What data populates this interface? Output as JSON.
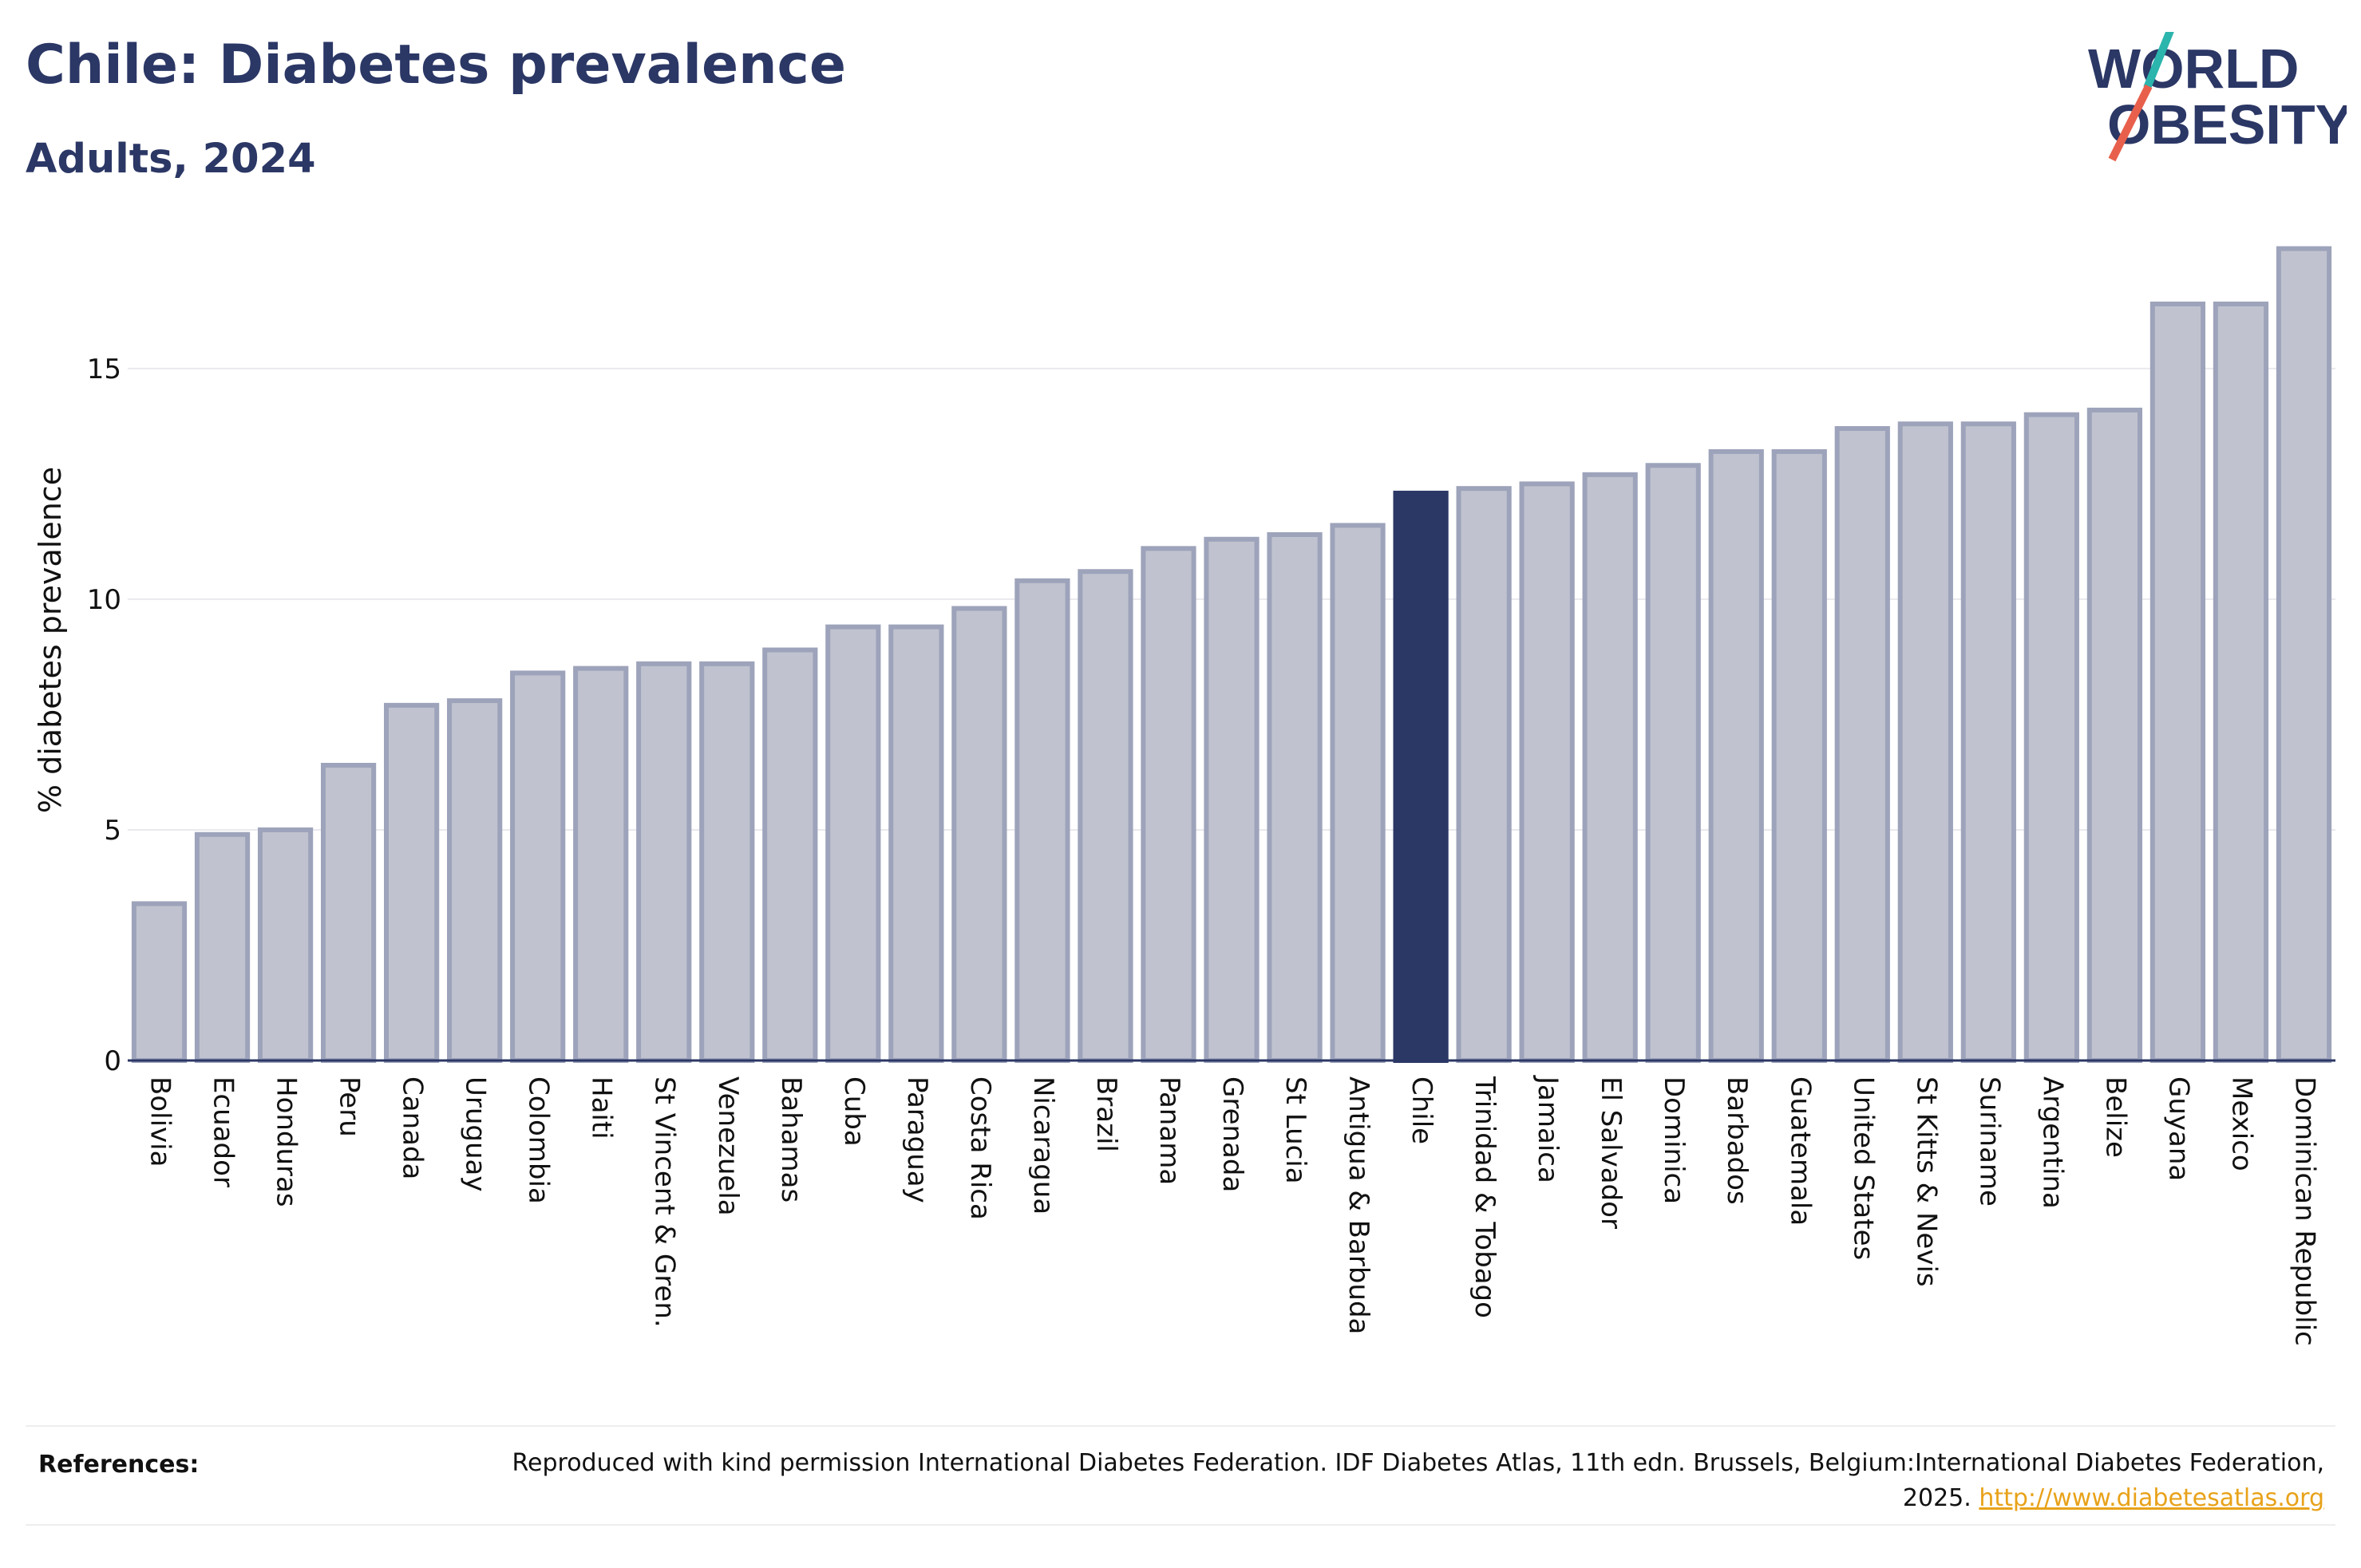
{
  "title": "Chile: Diabetes prevalence",
  "subtitle": "Adults, 2024",
  "logo": {
    "line1": "WORLD",
    "line2": "OBESITY",
    "accent_teal": "#2bb5ad",
    "accent_red": "#e8604c",
    "text_color": "#2b3765"
  },
  "colors": {
    "bar": "#c0c3cf",
    "bar_border": "#9da3ba",
    "highlight": "#2b3765",
    "grid": "#e9e9ee",
    "axis": "#2b3765"
  },
  "chart_data": {
    "type": "bar",
    "title": "Chile: Diabetes prevalence",
    "subtitle": "Adults, 2024",
    "xlabel": "",
    "ylabel": "% diabetes prevalence",
    "ylim": [
      0,
      17.8
    ],
    "yticks": [
      0,
      5,
      10,
      15
    ],
    "grid": true,
    "highlight": "Chile",
    "categories": [
      "Bolivia",
      "Ecuador",
      "Honduras",
      "Peru",
      "Canada",
      "Uruguay",
      "Colombia",
      "Haiti",
      "St Vincent & Gren.",
      "Venezuela",
      "Bahamas",
      "Cuba",
      "Paraguay",
      "Costa Rica",
      "Nicaragua",
      "Brazil",
      "Panama",
      "Grenada",
      "St Lucia",
      "Antigua & Barbuda",
      "Chile",
      "Trinidad & Tobago",
      "Jamaica",
      "El Salvador",
      "Dominica",
      "Barbados",
      "Guatemala",
      "United States",
      "St Kitts & Nevis",
      "Suriname",
      "Argentina",
      "Belize",
      "Guyana",
      "Mexico",
      "Dominican Republic"
    ],
    "values": [
      3.4,
      4.9,
      5.0,
      6.4,
      7.7,
      7.8,
      8.4,
      8.5,
      8.6,
      8.6,
      8.9,
      9.4,
      9.4,
      9.8,
      10.4,
      10.6,
      11.1,
      11.3,
      11.4,
      11.6,
      12.3,
      12.4,
      12.5,
      12.7,
      12.9,
      13.2,
      13.2,
      13.7,
      13.8,
      13.8,
      14.0,
      14.1,
      16.4,
      16.4,
      17.6
    ]
  },
  "references": {
    "label": "References:",
    "text": "Reproduced with kind permission International Diabetes Federation. IDF Diabetes Atlas, 11th edn. Brussels, Belgium:International Diabetes Federation, 2025.",
    "link": "http://www.diabetesatlas.org"
  }
}
